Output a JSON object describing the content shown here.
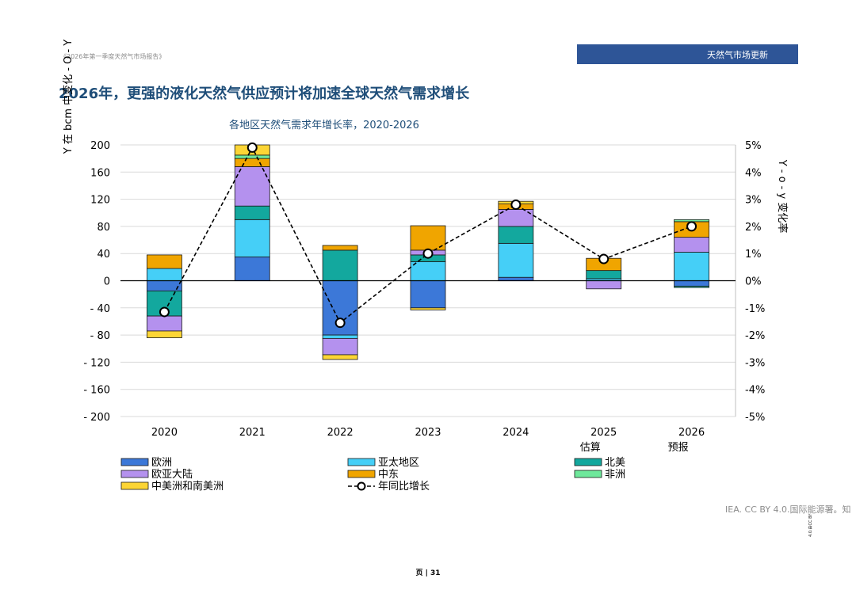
{
  "header": {
    "report_name": "《2026年第一季度天然气市场报告》",
    "section": "天然气市场更新"
  },
  "page_title": "2026年，更强的液化天然气供应预计将加速全球天然气需求增长",
  "footer": {
    "copyright": "IEA. CC BY 4.0.国际能源署。知",
    "vertical_note": "4.0.由CC BY",
    "page_label": "页 | 31"
  },
  "colors": {
    "europe": "#3c78d8",
    "asia_pacific": "#45cff7",
    "north_america": "#13a89e",
    "eurasia": "#b491ee",
    "middle_east": "#f0a500",
    "africa": "#6ee89b",
    "latam": "#fcd535",
    "title_blue": "#1f4e79",
    "banner_blue": "#2e5597"
  },
  "chart_data": {
    "type": "bar",
    "stacked": true,
    "title": "各地区天然气需求年增长率，2020-2026",
    "ylabel_left": "Y 在 bcm 中变化 - O - Y",
    "ylabel_right": "Y - o - y 变化率",
    "ylim": [
      -200,
      200
    ],
    "y_ticks": [
      200,
      160,
      120,
      80,
      40,
      0,
      -40,
      -80,
      -120,
      -160,
      -200
    ],
    "y_tick_labels": [
      "200",
      "160",
      "120",
      "80",
      "40",
      "0",
      "- 40",
      "- 80",
      "- 120",
      "- 160",
      "- 200"
    ],
    "y2lim": [
      -5,
      5
    ],
    "y2_ticks": [
      5,
      4,
      3,
      2,
      1,
      0,
      -1,
      -2,
      -3,
      -4,
      -5
    ],
    "y2_tick_labels": [
      "5%",
      "4%",
      "3%",
      "2%",
      "1%",
      "0%",
      "-1%",
      "-2%",
      "-3%",
      "-4%",
      "-5%"
    ],
    "categories": [
      "2020",
      "2021",
      "2022",
      "2023",
      "2024",
      "2025",
      "2026"
    ],
    "category_sublabels": [
      "",
      "",
      "",
      "",
      "",
      "估算",
      "预报"
    ],
    "series": [
      {
        "name": "欧洲",
        "color_key": "europe",
        "values": [
          -15,
          35,
          -80,
          -40,
          5,
          0,
          -8
        ]
      },
      {
        "name": "亚太地区",
        "color_key": "asia_pacific",
        "values": [
          18,
          55,
          -5,
          28,
          50,
          3,
          42
        ]
      },
      {
        "name": "北美",
        "color_key": "north_america",
        "values": [
          -37,
          20,
          45,
          10,
          25,
          12,
          -2
        ]
      },
      {
        "name": "欧亚大陆",
        "color_key": "eurasia",
        "values": [
          -22,
          58,
          -24,
          7,
          25,
          -12,
          22
        ]
      },
      {
        "name": "中东",
        "color_key": "middle_east",
        "values": [
          20,
          12,
          7,
          36,
          8,
          18,
          23
        ]
      },
      {
        "name": "非洲",
        "color_key": "africa",
        "values": [
          0,
          5,
          0,
          0,
          0,
          0,
          3
        ]
      },
      {
        "name": "中美洲和南美洲",
        "color_key": "latam",
        "values": [
          -10,
          15,
          -7,
          -3,
          4,
          0,
          0
        ]
      }
    ],
    "line": {
      "name": "年同比增长",
      "values": [
        -1.15,
        4.9,
        -1.55,
        1.0,
        2.8,
        0.8,
        2.0
      ]
    },
    "legend": [
      "欧洲",
      "亚太地区",
      "北美",
      "欧亚大陆",
      "中东",
      "非洲",
      "中美洲和南美洲",
      "年同比增长"
    ],
    "legend_position": "bottom"
  }
}
